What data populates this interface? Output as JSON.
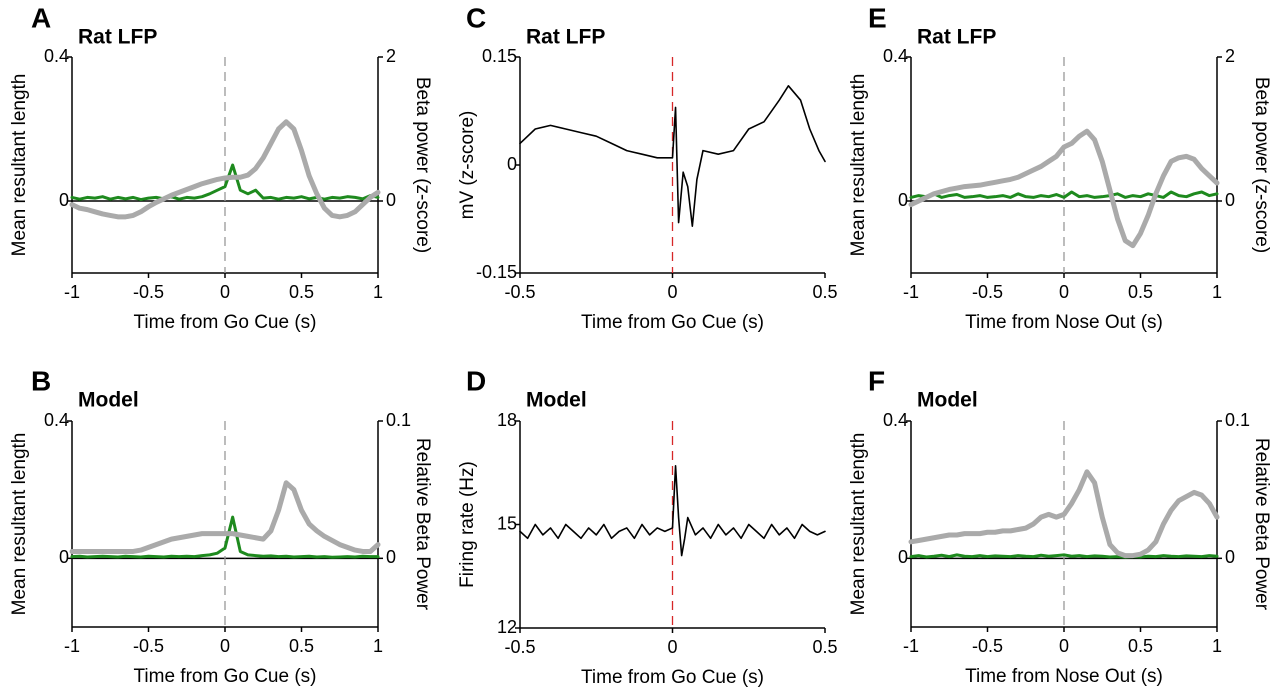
{
  "chart_data": [
    {
      "type": "line",
      "panel": "A",
      "title": "Rat LFP",
      "xlabel": "Time from Go Cue (s)",
      "ylabel": "Mean resultant length",
      "y2label": "Beta power (z-score)",
      "xlim": [
        -1,
        1
      ],
      "xticks": [
        -1,
        -0.5,
        0,
        0.5,
        1
      ],
      "ylim": [
        -0.2,
        0.4
      ],
      "yticks": [
        0,
        0.4
      ],
      "y2lim": [
        -1,
        2
      ],
      "y2ticks": [
        0,
        2
      ],
      "vline": 0,
      "vline_color": "#999999",
      "hline": 0,
      "x": [
        -1,
        -0.95,
        -0.9,
        -0.85,
        -0.8,
        -0.75,
        -0.7,
        -0.65,
        -0.6,
        -0.55,
        -0.5,
        -0.45,
        -0.4,
        -0.35,
        -0.3,
        -0.25,
        -0.2,
        -0.15,
        -0.1,
        -0.05,
        0,
        0.05,
        0.1,
        0.15,
        0.2,
        0.25,
        0.3,
        0.35,
        0.4,
        0.45,
        0.5,
        0.55,
        0.6,
        0.65,
        0.7,
        0.75,
        0.8,
        0.85,
        0.9,
        0.95,
        1
      ],
      "series": [
        {
          "color": "#1e8a1e",
          "width": 3,
          "values": [
            0.01,
            0.005,
            0.01,
            0.008,
            0.012,
            0.005,
            0.01,
            0.006,
            0.01,
            0.004,
            0.008,
            0.01,
            0.006,
            0.012,
            0.005,
            0.01,
            0.008,
            0.012,
            0.02,
            0.03,
            0.04,
            0.1,
            0.03,
            0.02,
            0.03,
            0.008,
            0.01,
            0.005,
            0.01,
            0.008,
            0.012,
            0.006,
            0.01,
            0.005,
            0.01,
            0.008,
            0.012,
            0.01,
            0.006,
            0.015,
            0.01
          ]
        },
        {
          "color": "#aaaaaa",
          "width": 5,
          "axis": "y2",
          "values": [
            -0.05,
            -0.1,
            -0.12,
            -0.15,
            -0.18,
            -0.2,
            -0.22,
            -0.22,
            -0.2,
            -0.15,
            -0.08,
            -0.02,
            0.03,
            0.08,
            0.12,
            0.16,
            0.2,
            0.24,
            0.27,
            0.3,
            0.32,
            0.33,
            0.33,
            0.36,
            0.45,
            0.6,
            0.8,
            1.0,
            1.1,
            1.0,
            0.7,
            0.35,
            0.1,
            -0.1,
            -0.2,
            -0.22,
            -0.2,
            -0.15,
            -0.05,
            0.05,
            0.12
          ]
        }
      ]
    },
    {
      "type": "line",
      "panel": "B",
      "title": "Model",
      "xlabel": "Time from Go Cue (s)",
      "ylabel": "Mean resultant length",
      "y2label": "Relative Beta Power",
      "xlim": [
        -1,
        1
      ],
      "xticks": [
        -1,
        -0.5,
        0,
        0.5,
        1
      ],
      "ylim": [
        -0.2,
        0.4
      ],
      "yticks": [
        0,
        0.4
      ],
      "y2lim": [
        -0.05,
        0.1
      ],
      "y2ticks": [
        0,
        0.1
      ],
      "vline": 0,
      "vline_color": "#999999",
      "hline": 0,
      "x": [
        -1,
        -0.95,
        -0.9,
        -0.85,
        -0.8,
        -0.75,
        -0.7,
        -0.65,
        -0.6,
        -0.55,
        -0.5,
        -0.45,
        -0.4,
        -0.35,
        -0.3,
        -0.25,
        -0.2,
        -0.15,
        -0.1,
        -0.05,
        0,
        0.05,
        0.1,
        0.15,
        0.2,
        0.25,
        0.3,
        0.35,
        0.4,
        0.45,
        0.5,
        0.55,
        0.6,
        0.65,
        0.7,
        0.75,
        0.8,
        0.85,
        0.9,
        0.95,
        1
      ],
      "series": [
        {
          "color": "#1e8a1e",
          "width": 3,
          "values": [
            0.005,
            0.006,
            0.004,
            0.005,
            0.006,
            0.005,
            0.004,
            0.006,
            0.005,
            0.004,
            0.006,
            0.005,
            0.004,
            0.006,
            0.005,
            0.006,
            0.005,
            0.008,
            0.01,
            0.015,
            0.03,
            0.12,
            0.02,
            0.01,
            0.008,
            0.006,
            0.007,
            0.005,
            0.006,
            0.004,
            0.005,
            0.006,
            0.004,
            0.005,
            0.003,
            0.004,
            0.005,
            0.004,
            0.006,
            0.005,
            0.005
          ]
        },
        {
          "color": "#aaaaaa",
          "width": 5,
          "axis": "y2",
          "values": [
            0.005,
            0.005,
            0.005,
            0.005,
            0.005,
            0.005,
            0.005,
            0.005,
            0.005,
            0.006,
            0.008,
            0.01,
            0.012,
            0.014,
            0.015,
            0.016,
            0.017,
            0.018,
            0.018,
            0.018,
            0.018,
            0.018,
            0.017,
            0.016,
            0.015,
            0.014,
            0.02,
            0.035,
            0.055,
            0.05,
            0.035,
            0.025,
            0.02,
            0.016,
            0.013,
            0.01,
            0.008,
            0.006,
            0.005,
            0.005,
            0.01
          ]
        }
      ]
    },
    {
      "type": "line",
      "panel": "C",
      "title": "Rat LFP",
      "xlabel": "Time from Go Cue (s)",
      "ylabel": "mV (z-score)",
      "xlim": [
        -0.5,
        0.5
      ],
      "xticks": [
        -0.5,
        0,
        0.5
      ],
      "ylim": [
        -0.15,
        0.15
      ],
      "yticks": [
        -0.15,
        0,
        0.15
      ],
      "vline": 0,
      "vline_color": "#d62728",
      "x": [
        -0.5,
        -0.45,
        -0.4,
        -0.35,
        -0.3,
        -0.25,
        -0.2,
        -0.15,
        -0.1,
        -0.05,
        -0.02,
        0,
        0.01,
        0.02,
        0.035,
        0.05,
        0.065,
        0.08,
        0.1,
        0.15,
        0.2,
        0.25,
        0.3,
        0.35,
        0.38,
        0.42,
        0.45,
        0.48,
        0.5
      ],
      "series": [
        {
          "color": "#000000",
          "width": 1.6,
          "values": [
            0.03,
            0.05,
            0.055,
            0.05,
            0.045,
            0.04,
            0.03,
            0.02,
            0.015,
            0.01,
            0.01,
            0.01,
            0.08,
            -0.08,
            -0.01,
            -0.03,
            -0.085,
            -0.02,
            0.02,
            0.015,
            0.02,
            0.05,
            0.06,
            0.09,
            0.11,
            0.09,
            0.05,
            0.02,
            0.005
          ]
        }
      ]
    },
    {
      "type": "line",
      "panel": "D",
      "title": "Model",
      "xlabel": "Time from Go Cue (s)",
      "ylabel": "Firing rate (Hz)",
      "xlim": [
        -0.5,
        0.5
      ],
      "xticks": [
        -0.5,
        0,
        0.5
      ],
      "ylim": [
        12,
        18
      ],
      "yticks": [
        12,
        15,
        18
      ],
      "vline": 0,
      "vline_color": "#d62728",
      "x": [
        -0.5,
        -0.475,
        -0.45,
        -0.425,
        -0.4,
        -0.375,
        -0.35,
        -0.325,
        -0.3,
        -0.275,
        -0.25,
        -0.225,
        -0.2,
        -0.175,
        -0.15,
        -0.125,
        -0.1,
        -0.075,
        -0.05,
        -0.025,
        0,
        0.01,
        0.02,
        0.03,
        0.04,
        0.05,
        0.075,
        0.1,
        0.125,
        0.15,
        0.175,
        0.2,
        0.225,
        0.25,
        0.275,
        0.3,
        0.325,
        0.35,
        0.375,
        0.4,
        0.425,
        0.45,
        0.475,
        0.5
      ],
      "series": [
        {
          "color": "#000000",
          "width": 1.6,
          "values": [
            14.8,
            14.6,
            15.0,
            14.7,
            14.9,
            14.6,
            15.0,
            14.8,
            14.6,
            14.9,
            14.7,
            15.0,
            14.6,
            14.8,
            14.9,
            14.6,
            15.0,
            14.7,
            14.9,
            14.8,
            14.9,
            16.7,
            15.2,
            14.1,
            14.6,
            15.2,
            14.7,
            14.9,
            14.6,
            15.0,
            14.7,
            14.9,
            14.6,
            15.0,
            14.8,
            14.6,
            15.0,
            14.7,
            14.9,
            14.6,
            15.0,
            14.8,
            14.7,
            14.8
          ]
        }
      ]
    },
    {
      "type": "line",
      "panel": "E",
      "title": "Rat LFP",
      "xlabel": "Time from Nose Out (s)",
      "ylabel": "Mean resultant length",
      "y2label": "Beta power (z-score)",
      "xlim": [
        -1,
        1
      ],
      "xticks": [
        -1,
        -0.5,
        0,
        0.5,
        1
      ],
      "ylim": [
        -0.2,
        0.4
      ],
      "yticks": [
        0,
        0.4
      ],
      "y2lim": [
        -1,
        2
      ],
      "y2ticks": [
        0,
        2
      ],
      "vline": 0,
      "vline_color": "#999999",
      "hline": 0,
      "x": [
        -1,
        -0.95,
        -0.9,
        -0.85,
        -0.8,
        -0.75,
        -0.7,
        -0.65,
        -0.6,
        -0.55,
        -0.5,
        -0.45,
        -0.4,
        -0.35,
        -0.3,
        -0.25,
        -0.2,
        -0.15,
        -0.1,
        -0.05,
        0,
        0.05,
        0.1,
        0.15,
        0.2,
        0.25,
        0.3,
        0.35,
        0.4,
        0.45,
        0.5,
        0.55,
        0.6,
        0.65,
        0.7,
        0.75,
        0.8,
        0.85,
        0.9,
        0.95,
        1
      ],
      "series": [
        {
          "color": "#1e8a1e",
          "width": 3,
          "values": [
            0.01,
            0.015,
            0.012,
            0.02,
            0.01,
            0.015,
            0.018,
            0.01,
            0.012,
            0.015,
            0.01,
            0.012,
            0.015,
            0.01,
            0.02,
            0.012,
            0.01,
            0.015,
            0.012,
            0.018,
            0.01,
            0.025,
            0.012,
            0.015,
            0.01,
            0.012,
            0.015,
            0.02,
            0.01,
            0.015,
            0.012,
            0.02,
            0.015,
            0.01,
            0.025,
            0.015,
            0.012,
            0.02,
            0.025,
            0.015,
            0.02
          ]
        },
        {
          "color": "#aaaaaa",
          "width": 5,
          "axis": "y2",
          "values": [
            -0.05,
            0.0,
            0.05,
            0.1,
            0.13,
            0.16,
            0.18,
            0.2,
            0.21,
            0.22,
            0.24,
            0.26,
            0.28,
            0.3,
            0.33,
            0.38,
            0.43,
            0.48,
            0.55,
            0.62,
            0.75,
            0.8,
            0.9,
            0.97,
            0.85,
            0.55,
            0.15,
            -0.25,
            -0.55,
            -0.62,
            -0.45,
            -0.2,
            0.1,
            0.35,
            0.55,
            0.6,
            0.62,
            0.58,
            0.45,
            0.35,
            0.25
          ]
        }
      ]
    },
    {
      "type": "line",
      "panel": "F",
      "title": "Model",
      "xlabel": "Time from Nose Out (s)",
      "ylabel": "Mean resultant length",
      "y2label": "Relative Beta Power",
      "xlim": [
        -1,
        1
      ],
      "xticks": [
        -1,
        -0.5,
        0,
        0.5,
        1
      ],
      "ylim": [
        -0.2,
        0.4
      ],
      "yticks": [
        0,
        0.4
      ],
      "y2lim": [
        -0.05,
        0.1
      ],
      "y2ticks": [
        0,
        0.1
      ],
      "vline": 0,
      "vline_color": "#999999",
      "hline": 0,
      "x": [
        -1,
        -0.95,
        -0.9,
        -0.85,
        -0.8,
        -0.75,
        -0.7,
        -0.65,
        -0.6,
        -0.55,
        -0.5,
        -0.45,
        -0.4,
        -0.35,
        -0.3,
        -0.25,
        -0.2,
        -0.15,
        -0.1,
        -0.05,
        0,
        0.05,
        0.1,
        0.15,
        0.2,
        0.25,
        0.3,
        0.35,
        0.4,
        0.45,
        0.5,
        0.55,
        0.6,
        0.65,
        0.7,
        0.75,
        0.8,
        0.85,
        0.9,
        0.95,
        1
      ],
      "series": [
        {
          "color": "#1e8a1e",
          "width": 3,
          "values": [
            0.005,
            0.008,
            0.004,
            0.006,
            0.009,
            0.005,
            0.01,
            0.006,
            0.005,
            0.008,
            0.005,
            0.007,
            0.006,
            0.005,
            0.008,
            0.006,
            0.005,
            0.009,
            0.006,
            0.008,
            0.01,
            0.006,
            0.008,
            0.005,
            0.007,
            0.006,
            0.004,
            0.005,
            0.003,
            0.005,
            0.004,
            0.006,
            0.005,
            0.008,
            0.006,
            0.005,
            0.007,
            0.006,
            0.005,
            0.008,
            0.006
          ]
        },
        {
          "color": "#aaaaaa",
          "width": 5,
          "axis": "y2",
          "values": [
            0.012,
            0.013,
            0.014,
            0.015,
            0.016,
            0.017,
            0.017,
            0.018,
            0.018,
            0.018,
            0.019,
            0.019,
            0.02,
            0.02,
            0.021,
            0.022,
            0.025,
            0.03,
            0.032,
            0.03,
            0.032,
            0.04,
            0.05,
            0.063,
            0.055,
            0.03,
            0.01,
            0.004,
            0.002,
            0.002,
            0.003,
            0.006,
            0.012,
            0.025,
            0.035,
            0.042,
            0.045,
            0.048,
            0.046,
            0.04,
            0.03
          ]
        }
      ]
    }
  ]
}
